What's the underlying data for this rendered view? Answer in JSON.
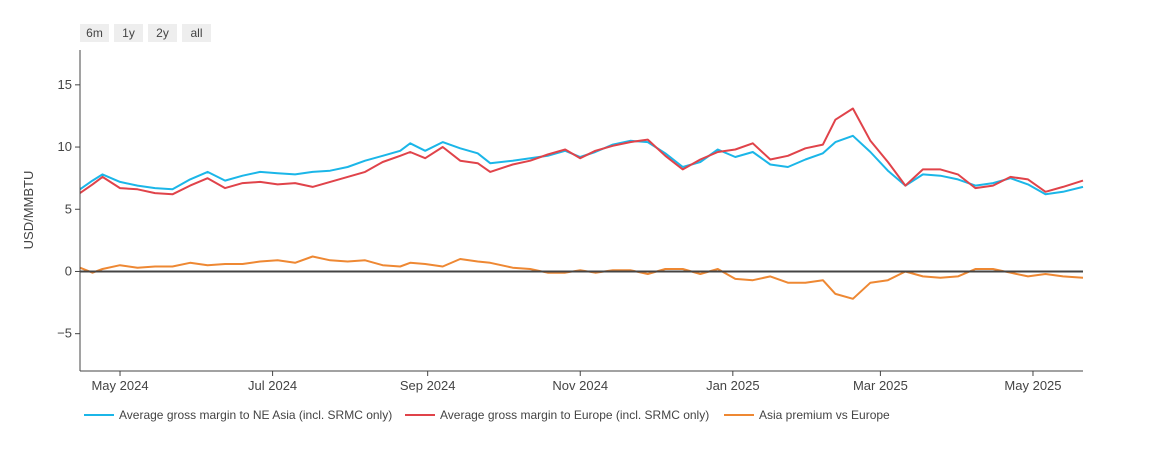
{
  "range_buttons": [
    "6m",
    "1y",
    "2y",
    "all"
  ],
  "chart_data": {
    "type": "line",
    "title": "",
    "xlabel": "",
    "ylabel": "USD/MMBTU",
    "x_tick_labels": [
      "May 2024",
      "Jul 2024",
      "Sep 2024",
      "Nov 2024",
      "Jan 2025",
      "Mar 2025",
      "May 2025"
    ],
    "x_tick_dates": [
      "2024-05-01",
      "2024-07-01",
      "2024-09-01",
      "2024-11-01",
      "2025-01-01",
      "2025-03-01",
      "2025-05-01"
    ],
    "xlim": [
      "2024-04-15",
      "2025-05-21"
    ],
    "y_ticks": [
      -5,
      0,
      5,
      10,
      15
    ],
    "ylim": [
      -8,
      17.8
    ],
    "zero_line": true,
    "grid": false,
    "legend_position": "bottom",
    "series": [
      {
        "name": "Average gross margin to NE Asia (incl. SRMC only)",
        "color": "#1bb6e8",
        "points": [
          [
            "2024-04-15",
            6.6
          ],
          [
            "2024-04-20",
            7.3
          ],
          [
            "2024-04-24",
            7.8
          ],
          [
            "2024-05-01",
            7.2
          ],
          [
            "2024-05-08",
            6.9
          ],
          [
            "2024-05-15",
            6.7
          ],
          [
            "2024-05-22",
            6.6
          ],
          [
            "2024-05-29",
            7.4
          ],
          [
            "2024-06-05",
            8.0
          ],
          [
            "2024-06-12",
            7.3
          ],
          [
            "2024-06-19",
            7.7
          ],
          [
            "2024-06-26",
            8.0
          ],
          [
            "2024-07-03",
            7.9
          ],
          [
            "2024-07-10",
            7.8
          ],
          [
            "2024-07-17",
            8.0
          ],
          [
            "2024-07-24",
            8.1
          ],
          [
            "2024-07-31",
            8.4
          ],
          [
            "2024-08-07",
            8.9
          ],
          [
            "2024-08-14",
            9.3
          ],
          [
            "2024-08-21",
            9.7
          ],
          [
            "2024-08-25",
            10.3
          ],
          [
            "2024-08-31",
            9.7
          ],
          [
            "2024-09-07",
            10.4
          ],
          [
            "2024-09-14",
            9.9
          ],
          [
            "2024-09-21",
            9.5
          ],
          [
            "2024-09-26",
            8.7
          ],
          [
            "2024-10-05",
            8.9
          ],
          [
            "2024-10-12",
            9.1
          ],
          [
            "2024-10-19",
            9.3
          ],
          [
            "2024-10-26",
            9.7
          ],
          [
            "2024-11-01",
            9.2
          ],
          [
            "2024-11-07",
            9.6
          ],
          [
            "2024-11-14",
            10.2
          ],
          [
            "2024-11-21",
            10.5
          ],
          [
            "2024-11-28",
            10.4
          ],
          [
            "2024-12-05",
            9.5
          ],
          [
            "2024-12-12",
            8.4
          ],
          [
            "2024-12-19",
            8.8
          ],
          [
            "2024-12-26",
            9.8
          ],
          [
            "2025-01-02",
            9.2
          ],
          [
            "2025-01-09",
            9.6
          ],
          [
            "2025-01-16",
            8.6
          ],
          [
            "2025-01-23",
            8.4
          ],
          [
            "2025-01-30",
            9.0
          ],
          [
            "2025-02-06",
            9.5
          ],
          [
            "2025-02-11",
            10.4
          ],
          [
            "2025-02-18",
            10.9
          ],
          [
            "2025-02-25",
            9.6
          ],
          [
            "2025-03-04",
            8.1
          ],
          [
            "2025-03-11",
            6.9
          ],
          [
            "2025-03-18",
            7.8
          ],
          [
            "2025-03-25",
            7.7
          ],
          [
            "2025-04-01",
            7.4
          ],
          [
            "2025-04-08",
            6.9
          ],
          [
            "2025-04-15",
            7.1
          ],
          [
            "2025-04-22",
            7.5
          ],
          [
            "2025-04-29",
            7.0
          ],
          [
            "2025-05-06",
            6.2
          ],
          [
            "2025-05-13",
            6.4
          ],
          [
            "2025-05-21",
            6.8
          ]
        ]
      },
      {
        "name": "Average gross margin to Europe (incl. SRMC only)",
        "color": "#e0434a",
        "points": [
          [
            "2024-04-15",
            6.3
          ],
          [
            "2024-04-20",
            7.0
          ],
          [
            "2024-04-24",
            7.6
          ],
          [
            "2024-05-01",
            6.7
          ],
          [
            "2024-05-08",
            6.6
          ],
          [
            "2024-05-15",
            6.3
          ],
          [
            "2024-05-22",
            6.2
          ],
          [
            "2024-05-29",
            6.9
          ],
          [
            "2024-06-05",
            7.5
          ],
          [
            "2024-06-12",
            6.7
          ],
          [
            "2024-06-19",
            7.1
          ],
          [
            "2024-06-26",
            7.2
          ],
          [
            "2024-07-03",
            7.0
          ],
          [
            "2024-07-10",
            7.1
          ],
          [
            "2024-07-17",
            6.8
          ],
          [
            "2024-07-24",
            7.2
          ],
          [
            "2024-07-31",
            7.6
          ],
          [
            "2024-08-07",
            8.0
          ],
          [
            "2024-08-14",
            8.8
          ],
          [
            "2024-08-21",
            9.3
          ],
          [
            "2024-08-25",
            9.6
          ],
          [
            "2024-08-31",
            9.1
          ],
          [
            "2024-09-07",
            10.0
          ],
          [
            "2024-09-14",
            8.9
          ],
          [
            "2024-09-21",
            8.7
          ],
          [
            "2024-09-26",
            8.0
          ],
          [
            "2024-10-05",
            8.6
          ],
          [
            "2024-10-12",
            8.9
          ],
          [
            "2024-10-19",
            9.4
          ],
          [
            "2024-10-26",
            9.8
          ],
          [
            "2024-11-01",
            9.1
          ],
          [
            "2024-11-07",
            9.7
          ],
          [
            "2024-11-14",
            10.1
          ],
          [
            "2024-11-21",
            10.4
          ],
          [
            "2024-11-28",
            10.6
          ],
          [
            "2024-12-05",
            9.3
          ],
          [
            "2024-12-12",
            8.2
          ],
          [
            "2024-12-19",
            9.0
          ],
          [
            "2024-12-26",
            9.6
          ],
          [
            "2025-01-02",
            9.8
          ],
          [
            "2025-01-09",
            10.3
          ],
          [
            "2025-01-16",
            9.0
          ],
          [
            "2025-01-23",
            9.3
          ],
          [
            "2025-01-30",
            9.9
          ],
          [
            "2025-02-06",
            10.2
          ],
          [
            "2025-02-11",
            12.2
          ],
          [
            "2025-02-18",
            13.1
          ],
          [
            "2025-02-25",
            10.5
          ],
          [
            "2025-03-04",
            8.8
          ],
          [
            "2025-03-11",
            6.9
          ],
          [
            "2025-03-18",
            8.2
          ],
          [
            "2025-03-25",
            8.2
          ],
          [
            "2025-04-01",
            7.8
          ],
          [
            "2025-04-08",
            6.7
          ],
          [
            "2025-04-15",
            6.9
          ],
          [
            "2025-04-22",
            7.6
          ],
          [
            "2025-04-29",
            7.4
          ],
          [
            "2025-05-06",
            6.4
          ],
          [
            "2025-05-13",
            6.8
          ],
          [
            "2025-05-21",
            7.3
          ]
        ]
      },
      {
        "name": "Asia premium vs Europe",
        "color": "#ee8833",
        "points": [
          [
            "2024-04-15",
            0.3
          ],
          [
            "2024-04-20",
            -0.1
          ],
          [
            "2024-04-24",
            0.2
          ],
          [
            "2024-05-01",
            0.5
          ],
          [
            "2024-05-08",
            0.3
          ],
          [
            "2024-05-15",
            0.4
          ],
          [
            "2024-05-22",
            0.4
          ],
          [
            "2024-05-29",
            0.7
          ],
          [
            "2024-06-05",
            0.5
          ],
          [
            "2024-06-12",
            0.6
          ],
          [
            "2024-06-19",
            0.6
          ],
          [
            "2024-06-26",
            0.8
          ],
          [
            "2024-07-03",
            0.9
          ],
          [
            "2024-07-10",
            0.7
          ],
          [
            "2024-07-17",
            1.2
          ],
          [
            "2024-07-24",
            0.9
          ],
          [
            "2024-07-31",
            0.8
          ],
          [
            "2024-08-07",
            0.9
          ],
          [
            "2024-08-14",
            0.5
          ],
          [
            "2024-08-21",
            0.4
          ],
          [
            "2024-08-25",
            0.7
          ],
          [
            "2024-08-31",
            0.6
          ],
          [
            "2024-09-07",
            0.4
          ],
          [
            "2024-09-14",
            1.0
          ],
          [
            "2024-09-21",
            0.8
          ],
          [
            "2024-09-26",
            0.7
          ],
          [
            "2024-10-05",
            0.3
          ],
          [
            "2024-10-12",
            0.2
          ],
          [
            "2024-10-19",
            -0.1
          ],
          [
            "2024-10-26",
            -0.1
          ],
          [
            "2024-11-01",
            0.1
          ],
          [
            "2024-11-07",
            -0.1
          ],
          [
            "2024-11-14",
            0.1
          ],
          [
            "2024-11-21",
            0.1
          ],
          [
            "2024-11-28",
            -0.2
          ],
          [
            "2024-12-05",
            0.2
          ],
          [
            "2024-12-12",
            0.2
          ],
          [
            "2024-12-19",
            -0.2
          ],
          [
            "2024-12-26",
            0.2
          ],
          [
            "2025-01-02",
            -0.6
          ],
          [
            "2025-01-09",
            -0.7
          ],
          [
            "2025-01-16",
            -0.4
          ],
          [
            "2025-01-23",
            -0.9
          ],
          [
            "2025-01-30",
            -0.9
          ],
          [
            "2025-02-06",
            -0.7
          ],
          [
            "2025-02-11",
            -1.8
          ],
          [
            "2025-02-18",
            -2.2
          ],
          [
            "2025-02-25",
            -0.9
          ],
          [
            "2025-03-04",
            -0.7
          ],
          [
            "2025-03-11",
            0.0
          ],
          [
            "2025-03-18",
            -0.4
          ],
          [
            "2025-03-25",
            -0.5
          ],
          [
            "2025-04-01",
            -0.4
          ],
          [
            "2025-04-08",
            0.2
          ],
          [
            "2025-04-15",
            0.2
          ],
          [
            "2025-04-22",
            -0.1
          ],
          [
            "2025-04-29",
            -0.4
          ],
          [
            "2025-05-06",
            -0.2
          ],
          [
            "2025-05-13",
            -0.4
          ],
          [
            "2025-05-21",
            -0.5
          ]
        ]
      }
    ]
  }
}
